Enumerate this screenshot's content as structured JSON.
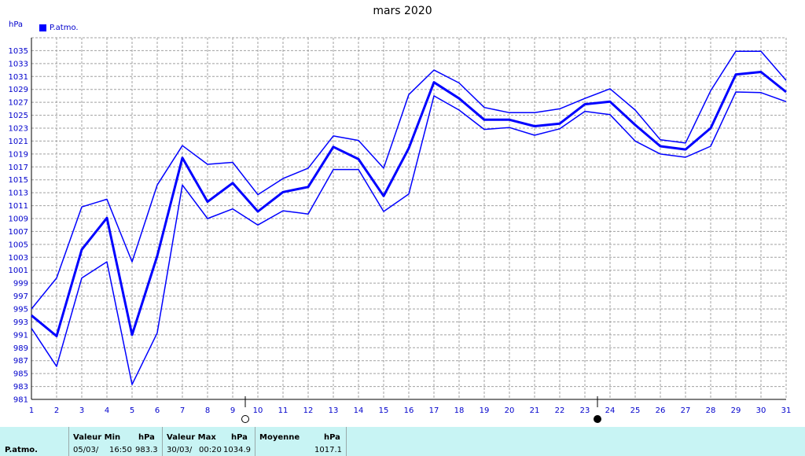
{
  "chart_data": {
    "type": "line",
    "title": "mars 2020",
    "unit": "hPa",
    "legend": [
      "P.atmo."
    ],
    "x": [
      1,
      2,
      3,
      4,
      5,
      6,
      7,
      8,
      9,
      10,
      11,
      12,
      13,
      14,
      15,
      16,
      17,
      18,
      19,
      20,
      21,
      22,
      23,
      24,
      25,
      26,
      27,
      28,
      29,
      30,
      31
    ],
    "ylim": [
      981,
      1037
    ],
    "yticks": [
      981,
      983,
      985,
      987,
      989,
      991,
      993,
      995,
      997,
      999,
      1001,
      1003,
      1005,
      1007,
      1009,
      1011,
      1013,
      1015,
      1017,
      1019,
      1021,
      1023,
      1025,
      1027,
      1029,
      1031,
      1033,
      1035
    ],
    "grid": true,
    "series": [
      {
        "role": "max",
        "values": [
          995.0,
          999.8,
          1010.8,
          1012.0,
          1002.3,
          1014.2,
          1020.3,
          1017.4,
          1017.7,
          1012.7,
          1015.2,
          1016.8,
          1021.8,
          1021.1,
          1016.8,
          1028.2,
          1032.0,
          1030.0,
          1026.2,
          1025.4,
          1025.4,
          1026.0,
          1027.6,
          1029.1,
          1025.8,
          1021.2,
          1020.7,
          1028.8,
          1034.9,
          1034.9,
          1030.4
        ]
      },
      {
        "role": "mean",
        "values": [
          994.0,
          990.8,
          1004.2,
          1009.1,
          991.0,
          1003.2,
          1018.4,
          1011.6,
          1014.5,
          1010.1,
          1013.1,
          1013.9,
          1020.1,
          1018.2,
          1012.5,
          1019.9,
          1030.1,
          1027.6,
          1024.3,
          1024.3,
          1023.3,
          1023.7,
          1026.7,
          1027.1,
          1023.5,
          1020.2,
          1019.7,
          1023.0,
          1031.3,
          1031.7,
          1028.6
        ]
      },
      {
        "role": "min",
        "values": [
          992.0,
          986.1,
          999.8,
          1002.3,
          983.3,
          991.3,
          1014.2,
          1009.0,
          1010.5,
          1008.0,
          1010.2,
          1009.7,
          1016.6,
          1016.6,
          1010.1,
          1012.8,
          1028.0,
          1025.8,
          1022.8,
          1023.1,
          1021.9,
          1022.9,
          1025.6,
          1025.1,
          1021.0,
          1019.0,
          1018.5,
          1020.2,
          1028.6,
          1028.5,
          1027.1
        ]
      }
    ],
    "markers": [
      {
        "type": "new-moon",
        "x": 10
      },
      {
        "type": "full-moon",
        "x": 24
      }
    ],
    "colors": {
      "line": "#0000ff",
      "axis_text": "#0000cc",
      "grid": "#a0a0a0",
      "footer_bg": "#c8f4f4"
    }
  },
  "footer": {
    "row_label": "P.atmo.",
    "min": {
      "header": "Valeur Min",
      "unit": "hPa",
      "date": "05/03/",
      "time": "16:50",
      "value": "983.3"
    },
    "max": {
      "header": "Valeur Max",
      "unit": "hPa",
      "date": "30/03/",
      "time": "00:20",
      "value": "1034.9"
    },
    "mean": {
      "header": "Moyenne",
      "unit": "hPa",
      "value": "1017.1"
    }
  }
}
